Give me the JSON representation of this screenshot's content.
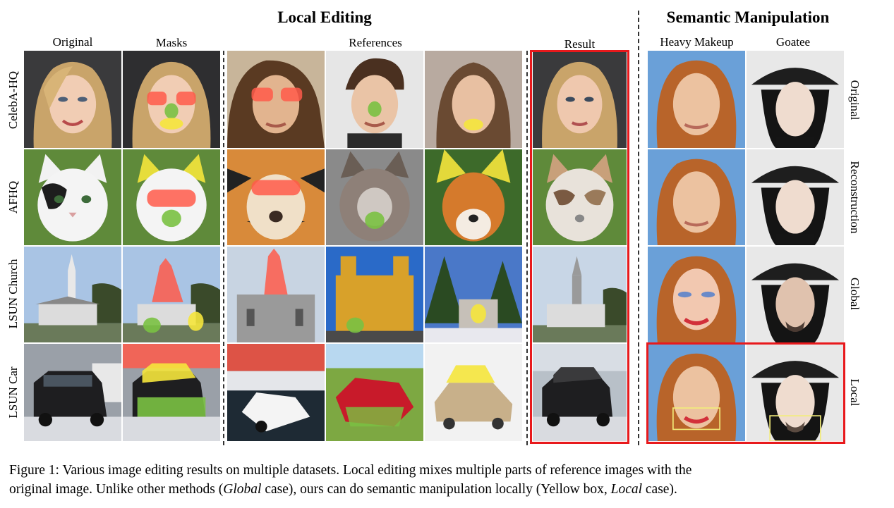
{
  "figure": {
    "section_titles": {
      "local_editing": "Local Editing",
      "semantic_manipulation": "Semantic Manipulation"
    },
    "column_headers": {
      "original": "Original",
      "masks": "Masks",
      "references": "References",
      "result": "Result",
      "heavy_makeup": "Heavy Makeup",
      "goatee": "Goatee"
    },
    "row_labels_left": [
      "CelebA-HQ",
      "AFHQ",
      "LSUN Church",
      "LSUN Car"
    ],
    "row_labels_right": [
      "Original",
      "Reconstruction",
      "Global",
      "Local"
    ],
    "palette": {
      "highlight_red": "#e8191c",
      "mask_red": "#ff5a4a",
      "mask_green": "#7ac142",
      "mask_yellow": "#f5e63c",
      "face_box_yellow": "#f2ec7a"
    }
  },
  "caption": {
    "line1": "Figure 1: Various image editing results on multiple datasets. Local editing mixes multiple parts of reference images with the",
    "line2_a": "original image. Unlike other methods (",
    "line2_em1": "Global",
    "line2_b": " case), ours can do semantic manipulation locally (Yellow box, ",
    "line2_em2": "Local",
    "line2_c": " case)."
  }
}
